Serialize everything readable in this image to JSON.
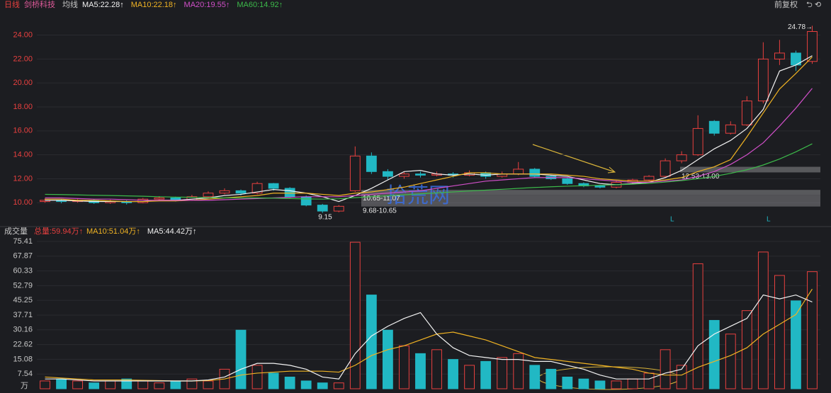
{
  "header": {
    "period": "日线",
    "stock": "剑桥科技",
    "ma_label": "均线",
    "adjust": "前复权",
    "watermark": "拾荒网"
  },
  "chart_data": [
    {
      "type": "candlestick",
      "up_color": "#e8403f",
      "down_color": "#21b8c4",
      "open": [
        10.1,
        10.2,
        10.1,
        10.2,
        10.0,
        10.1,
        10.0,
        10.3,
        10.4,
        10.2,
        10.5,
        10.8,
        11.0,
        10.8,
        11.6,
        11.2,
        10.5,
        9.8,
        9.3,
        11.0,
        13.9,
        12.6,
        12.2,
        12.4,
        12.3,
        12.4,
        12.3,
        12.5,
        12.2,
        12.4,
        12.8,
        12.2,
        12.0,
        11.6,
        11.4,
        11.3,
        11.7,
        11.9,
        12.2,
        13.5,
        14.0,
        16.8,
        15.8,
        16.5,
        18.5,
        22.0,
        22.5,
        21.8
      ],
      "high": [
        10.35,
        10.3,
        10.3,
        10.3,
        10.25,
        10.2,
        10.4,
        10.55,
        10.5,
        10.65,
        10.95,
        11.2,
        11.1,
        11.75,
        11.65,
        11.3,
        10.6,
        9.9,
        9.8,
        14.7,
        14.2,
        12.8,
        12.6,
        12.6,
        12.6,
        12.55,
        12.7,
        12.6,
        12.6,
        13.4,
        12.9,
        12.3,
        12.1,
        11.7,
        11.5,
        11.85,
        12.0,
        12.3,
        13.7,
        14.3,
        17.3,
        16.9,
        16.8,
        18.9,
        23.4,
        23.6,
        22.7,
        24.78
      ],
      "low": [
        10.0,
        9.95,
        10.0,
        9.9,
        9.9,
        9.85,
        9.95,
        10.2,
        10.1,
        10.15,
        10.4,
        10.7,
        10.6,
        10.7,
        11.0,
        10.4,
        9.7,
        9.15,
        9.2,
        10.9,
        12.4,
        11.9,
        12.0,
        12.1,
        12.2,
        12.1,
        12.2,
        12.0,
        12.1,
        12.3,
        12.1,
        11.9,
        11.5,
        11.3,
        11.2,
        11.2,
        11.6,
        11.8,
        12.1,
        13.3,
        13.9,
        15.6,
        15.7,
        16.4,
        18.3,
        21.5,
        21.0,
        21.6
      ],
      "close": [
        10.2,
        10.1,
        10.2,
        10.0,
        10.1,
        10.0,
        10.3,
        10.4,
        10.2,
        10.5,
        10.8,
        11.0,
        10.8,
        11.6,
        11.2,
        10.5,
        9.8,
        9.3,
        9.7,
        13.9,
        12.6,
        12.2,
        12.4,
        12.3,
        12.4,
        12.3,
        12.5,
        12.2,
        12.4,
        12.8,
        12.2,
        12.0,
        11.6,
        11.4,
        11.3,
        11.7,
        11.9,
        12.2,
        13.5,
        14.0,
        16.2,
        15.8,
        16.5,
        18.5,
        22.0,
        22.5,
        21.5,
        24.3
      ],
      "series": [
        {
          "name": "MA5:22.28↑",
          "color": "#f2f2f2",
          "values": [
            10.2,
            10.2,
            10.15,
            10.1,
            10.1,
            10.1,
            10.1,
            10.2,
            10.2,
            10.3,
            10.4,
            10.6,
            10.7,
            10.9,
            11.1,
            11.0,
            10.8,
            10.5,
            10.1,
            10.6,
            11.2,
            11.9,
            12.6,
            12.7,
            12.4,
            12.3,
            12.4,
            12.3,
            12.4,
            12.4,
            12.4,
            12.3,
            12.2,
            11.9,
            11.6,
            11.5,
            11.6,
            11.7,
            12.1,
            12.7,
            13.6,
            14.5,
            15.2,
            16.2,
            17.8,
            21.0,
            21.5,
            22.28
          ]
        },
        {
          "name": "MA10:22.18↑",
          "color": "#f0b323",
          "values": [
            10.3,
            10.3,
            10.2,
            10.2,
            10.15,
            10.1,
            10.1,
            10.15,
            10.15,
            10.2,
            10.3,
            10.4,
            10.5,
            10.6,
            10.8,
            10.8,
            10.8,
            10.7,
            10.6,
            10.8,
            10.9,
            11.1,
            11.3,
            11.6,
            11.9,
            12.2,
            12.5,
            12.5,
            12.4,
            12.4,
            12.4,
            12.4,
            12.3,
            12.2,
            12.0,
            11.9,
            11.8,
            11.8,
            11.9,
            12.1,
            12.6,
            13.0,
            13.6,
            15.5,
            17.5,
            19.5,
            20.8,
            22.18
          ]
        },
        {
          "name": "MA20:19.55↑",
          "color": "#d04fc8",
          "values": [
            10.4,
            10.4,
            10.35,
            10.3,
            10.3,
            10.25,
            10.2,
            10.2,
            10.2,
            10.2,
            10.2,
            10.25,
            10.3,
            10.35,
            10.4,
            10.45,
            10.5,
            10.5,
            10.5,
            10.6,
            10.7,
            10.8,
            10.9,
            11.0,
            11.2,
            11.4,
            11.6,
            11.8,
            11.9,
            12.0,
            12.1,
            12.1,
            12.1,
            12.0,
            11.9,
            11.8,
            11.7,
            11.7,
            11.8,
            11.9,
            12.2,
            12.6,
            13.2,
            14.0,
            15.0,
            16.4,
            17.9,
            19.55
          ]
        },
        {
          "name": "MA60:14.92↑",
          "color": "#3cb94a",
          "values": [
            10.7,
            10.68,
            10.65,
            10.62,
            10.6,
            10.57,
            10.54,
            10.5,
            10.47,
            10.45,
            10.42,
            10.4,
            10.4,
            10.4,
            10.38,
            10.35,
            10.32,
            10.3,
            10.33,
            10.42,
            10.5,
            10.58,
            10.66,
            10.74,
            10.82,
            10.9,
            10.98,
            11.05,
            11.12,
            11.2,
            11.27,
            11.33,
            11.38,
            11.42,
            11.46,
            11.5,
            11.55,
            11.62,
            11.72,
            11.85,
            12.0,
            12.2,
            12.45,
            12.75,
            13.15,
            13.65,
            14.25,
            14.92
          ]
        }
      ],
      "ylim": [
        8.3,
        25.63
      ],
      "yticks": [
        {
          "value": 10,
          "label": "10.00"
        },
        {
          "value": 12,
          "label": "12.00"
        },
        {
          "value": 14,
          "label": "14.00"
        },
        {
          "value": 16,
          "label": "16.00"
        },
        {
          "value": 18,
          "label": "18.00"
        },
        {
          "value": 20,
          "label": "20.00"
        },
        {
          "value": 22,
          "label": "22.00"
        },
        {
          "value": 24,
          "label": "24.00"
        }
      ],
      "zones": [
        {
          "low": 12.53,
          "high": 13.0,
          "label": "12.53-13.00"
        },
        {
          "low": 10.65,
          "high": 11.07,
          "label": "10.65-11.07"
        },
        {
          "low": 9.68,
          "high": 10.65,
          "label": "9.68-10.65"
        }
      ],
      "annotations": [
        "24.78→",
        "9.15",
        "L",
        "L"
      ]
    },
    {
      "type": "bar",
      "title": "成交量",
      "total": "总量:59.94万↑",
      "unit": "万",
      "values": [
        4,
        5,
        4,
        3,
        4,
        5,
        4,
        3,
        4,
        5,
        4,
        10,
        30,
        12,
        8,
        6,
        4,
        3,
        3,
        75,
        48,
        30,
        22,
        18,
        20,
        15,
        12,
        14,
        16,
        18,
        12,
        10,
        6,
        5,
        4,
        4,
        5,
        8,
        20,
        12,
        64,
        35,
        28,
        40,
        70,
        58,
        45,
        59.94
      ],
      "series": [
        {
          "name": "MA10:51.04万↑",
          "color": "#f0b323",
          "values": [
            6,
            5.5,
            5,
            4.5,
            4.5,
            4.5,
            4.3,
            4.2,
            4,
            4,
            4.2,
            5,
            7,
            8,
            8.5,
            9,
            9,
            9,
            8.5,
            12,
            17,
            20,
            22,
            25,
            28,
            29,
            27,
            25,
            22,
            19,
            16,
            15,
            14,
            13,
            12,
            11,
            10,
            8,
            7,
            7,
            11,
            14,
            17,
            21,
            28,
            33,
            38,
            51.04
          ]
        },
        {
          "name": "MA5:44.42万↑",
          "color": "#f2f2f2",
          "values": [
            5,
            5,
            4.5,
            4,
            4,
            4,
            4,
            4,
            4,
            4,
            4.5,
            6,
            10,
            13,
            13,
            12,
            10,
            6,
            5,
            18,
            27,
            32,
            36,
            39,
            28,
            21,
            17,
            16,
            15,
            15,
            14,
            14,
            12,
            10,
            7,
            5,
            5,
            5,
            8,
            10,
            22,
            28,
            32,
            36,
            48,
            46,
            48,
            44.42
          ]
        }
      ],
      "ylim": [
        0,
        78.3
      ],
      "yticks": [
        7.54,
        15.08,
        22.62,
        30.16,
        37.71,
        45.25,
        52.79,
        60.33,
        67.87,
        75.41
      ]
    }
  ]
}
